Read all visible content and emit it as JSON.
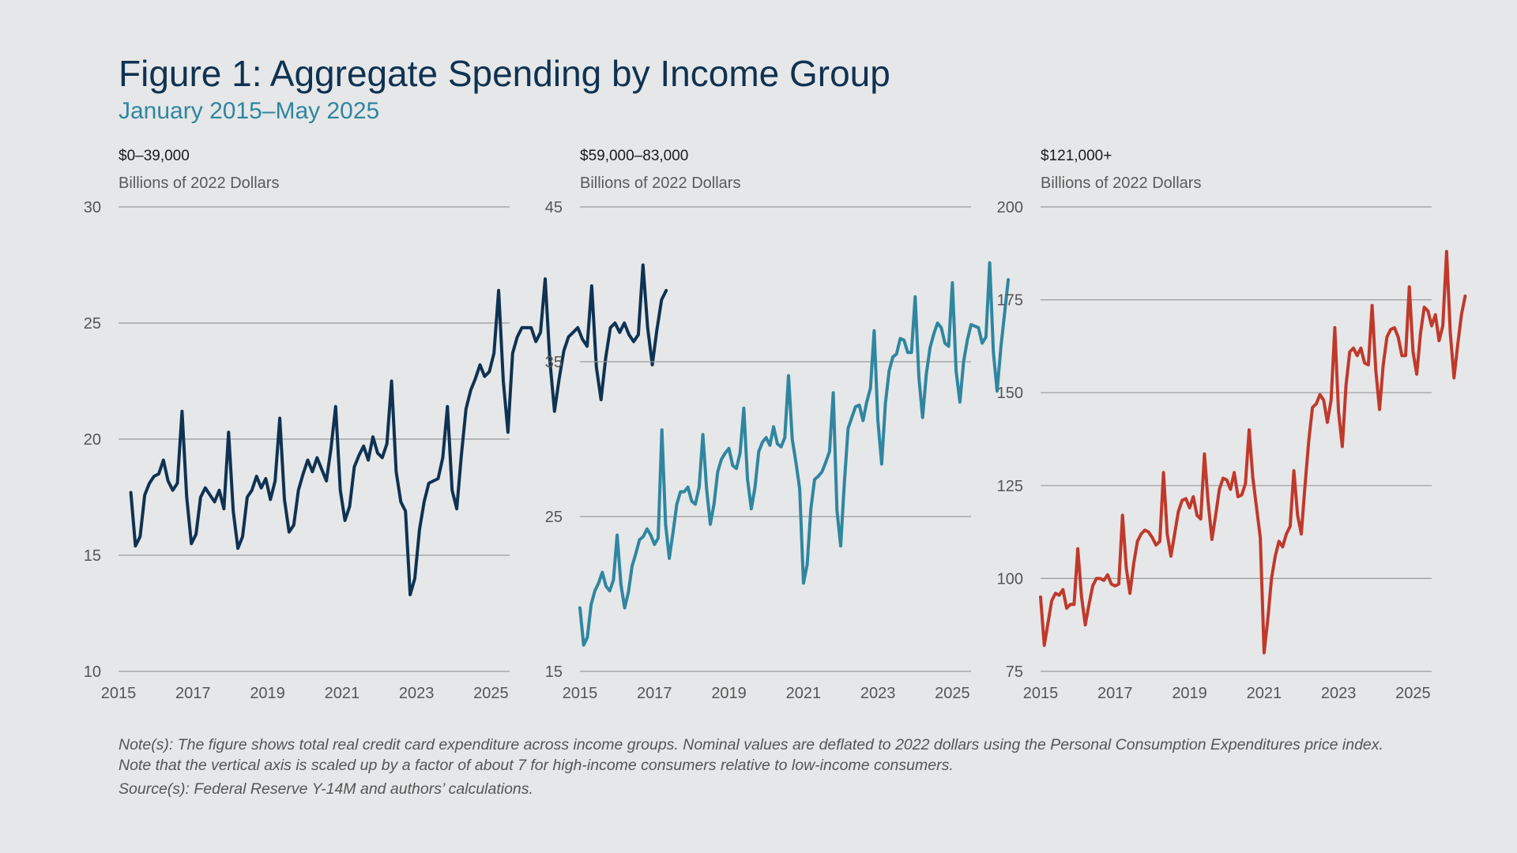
{
  "title": "Figure 1: Aggregate Spending by Income Group",
  "subtitle": "January 2015–May 2025",
  "note": "Note(s): The figure shows total real credit card expenditure across income groups. Nominal values are deflated to 2022 dollars using the Personal Consumption Expenditures price index. Note that the vertical axis is scaled up by a factor of about 7 for high-income consumers relative to low-income consumers.",
  "source": "Source(s): Federal Reserve Y-14M and authors’ calculations.",
  "chart_data": [
    {
      "type": "line",
      "title": "$0–39,000",
      "ylabel": "Billions of 2022 Dollars",
      "color": "#0f3252",
      "xlim": [
        2015,
        2025.5
      ],
      "ylim": [
        10,
        30
      ],
      "yticks": [
        "10",
        "15",
        "20",
        "25",
        "30"
      ],
      "xticks": [
        "2015",
        "2017",
        "2019",
        "2021",
        "2023",
        "2025"
      ],
      "grid": true,
      "x_start": 2015.33,
      "x_step": 0.125,
      "values": [
        17.7,
        15.4,
        15.8,
        17.6,
        18.1,
        18.4,
        18.5,
        19.1,
        18.2,
        17.8,
        18.1,
        21.2,
        17.5,
        15.5,
        15.9,
        17.5,
        17.9,
        17.6,
        17.3,
        17.8,
        17.0,
        20.3,
        16.9,
        15.3,
        15.8,
        17.5,
        17.8,
        18.4,
        17.9,
        18.3,
        17.4,
        18.2,
        20.9,
        17.4,
        16.0,
        16.3,
        17.8,
        18.5,
        19.1,
        18.6,
        19.2,
        18.7,
        18.2,
        19.6,
        21.4,
        17.8,
        16.5,
        17.1,
        18.8,
        19.3,
        19.7,
        19.1,
        20.1,
        19.4,
        19.2,
        19.8,
        22.5,
        18.6,
        17.3,
        16.9,
        13.3,
        14.0,
        16.1,
        17.3,
        18.1,
        18.2,
        18.3,
        19.2,
        21.4,
        17.8,
        17.0,
        19.3,
        21.3,
        22.1,
        22.6,
        23.2,
        22.7,
        22.9,
        23.7,
        26.4,
        22.5,
        20.3,
        23.7,
        24.4,
        24.8,
        24.8,
        24.8,
        24.2,
        24.6,
        26.9,
        23.4,
        21.2,
        22.6,
        23.8,
        24.4,
        24.6,
        24.8,
        24.3,
        24.0,
        26.6,
        23.1,
        21.7,
        23.5,
        24.8,
        25.0,
        24.6,
        25.0,
        24.5,
        24.2,
        24.5,
        27.5,
        24.8,
        23.2,
        24.7,
        26.0,
        26.4
      ]
    },
    {
      "type": "line",
      "title": "$59,000–83,000",
      "ylabel": "Billions of 2022 Dollars",
      "color": "#2f86a0",
      "xlim": [
        2015,
        2025.5
      ],
      "ylim": [
        15,
        45
      ],
      "yticks": [
        "15",
        "25",
        "35",
        "45"
      ],
      "xticks": [
        "2015",
        "2017",
        "2019",
        "2021",
        "2023",
        "2025"
      ],
      "grid": true,
      "x_start": 2015.0,
      "x_step": 0.1,
      "values": [
        19.1,
        16.7,
        17.2,
        19.3,
        20.2,
        20.7,
        21.4,
        20.5,
        20.2,
        20.9,
        23.8,
        20.6,
        19.1,
        20.1,
        21.8,
        22.6,
        23.5,
        23.7,
        24.2,
        23.8,
        23.2,
        23.6,
        30.6,
        24.5,
        22.3,
        24.0,
        25.8,
        26.6,
        26.6,
        26.9,
        26.0,
        25.8,
        26.9,
        30.3,
        26.8,
        24.5,
        25.8,
        27.9,
        28.7,
        29.1,
        29.4,
        28.3,
        28.1,
        29.1,
        32.0,
        27.4,
        25.5,
        26.9,
        29.2,
        29.8,
        30.1,
        29.6,
        30.8,
        29.7,
        29.5,
        30.1,
        34.1,
        30.0,
        28.5,
        26.8,
        20.7,
        21.9,
        25.5,
        27.4,
        27.6,
        27.9,
        28.5,
        29.2,
        33.0,
        25.4,
        23.1,
        27.2,
        30.7,
        31.4,
        32.1,
        32.2,
        31.2,
        32.4,
        33.3,
        37.0,
        31.2,
        28.4,
        32.3,
        34.4,
        35.3,
        35.5,
        36.5,
        36.4,
        35.6,
        35.6,
        39.2,
        34.0,
        31.4,
        34.2,
        35.9,
        36.8,
        37.5,
        37.2,
        36.2,
        36.0,
        40.1,
        34.4,
        32.4,
        35.0,
        36.4,
        37.4,
        37.3,
        37.2,
        36.2,
        36.6,
        41.4,
        35.6,
        33.1,
        35.9,
        38.1,
        40.3
      ]
    },
    {
      "type": "line",
      "title": "$121,000+",
      "ylabel": "Billions of 2022 Dollars",
      "color": "#c0392b",
      "xlim": [
        2015,
        2025.5
      ],
      "ylim": [
        75,
        200
      ],
      "yticks": [
        "75",
        "100",
        "125",
        "150",
        "175",
        "200"
      ],
      "xticks": [
        "2015",
        "2017",
        "2019",
        "2021",
        "2023",
        "2025"
      ],
      "grid": true,
      "x_start": 2015.0,
      "x_step": 0.1,
      "values": [
        95.0,
        82.0,
        88.0,
        94.0,
        96.0,
        95.5,
        97.0,
        92.0,
        93.0,
        93.0,
        108.0,
        95.0,
        87.5,
        93.0,
        98.0,
        100.0,
        100.0,
        99.5,
        101.0,
        98.5,
        98.0,
        98.5,
        117.0,
        103.0,
        96.0,
        104.0,
        110.0,
        112.0,
        113.0,
        112.5,
        111.0,
        109.0,
        110.0,
        128.5,
        112.0,
        106.0,
        112.0,
        118.0,
        121.0,
        121.5,
        119.0,
        122.0,
        117.0,
        116.0,
        133.5,
        120.5,
        110.5,
        117.0,
        124.0,
        127.0,
        126.5,
        124.0,
        128.5,
        122.0,
        122.5,
        125.5,
        140.0,
        127.0,
        119.0,
        111.0,
        80.0,
        89.0,
        100.0,
        106.0,
        110.0,
        108.5,
        112.0,
        114.0,
        129.0,
        117.0,
        112.0,
        125.0,
        137.0,
        146.0,
        147.0,
        149.5,
        148.0,
        142.0,
        148.0,
        167.5,
        145.0,
        135.5,
        152.0,
        161.0,
        162.0,
        160.0,
        162.0,
        158.0,
        157.5,
        173.5,
        156.0,
        145.5,
        157.5,
        165.0,
        167.0,
        167.5,
        165.0,
        160.0,
        160.0,
        178.5,
        161.0,
        155.0,
        166.0,
        173.0,
        172.0,
        168.0,
        171.0,
        164.0,
        168.0,
        188.0,
        166.0,
        154.0,
        163.0,
        171.0,
        176.0
      ]
    }
  ]
}
